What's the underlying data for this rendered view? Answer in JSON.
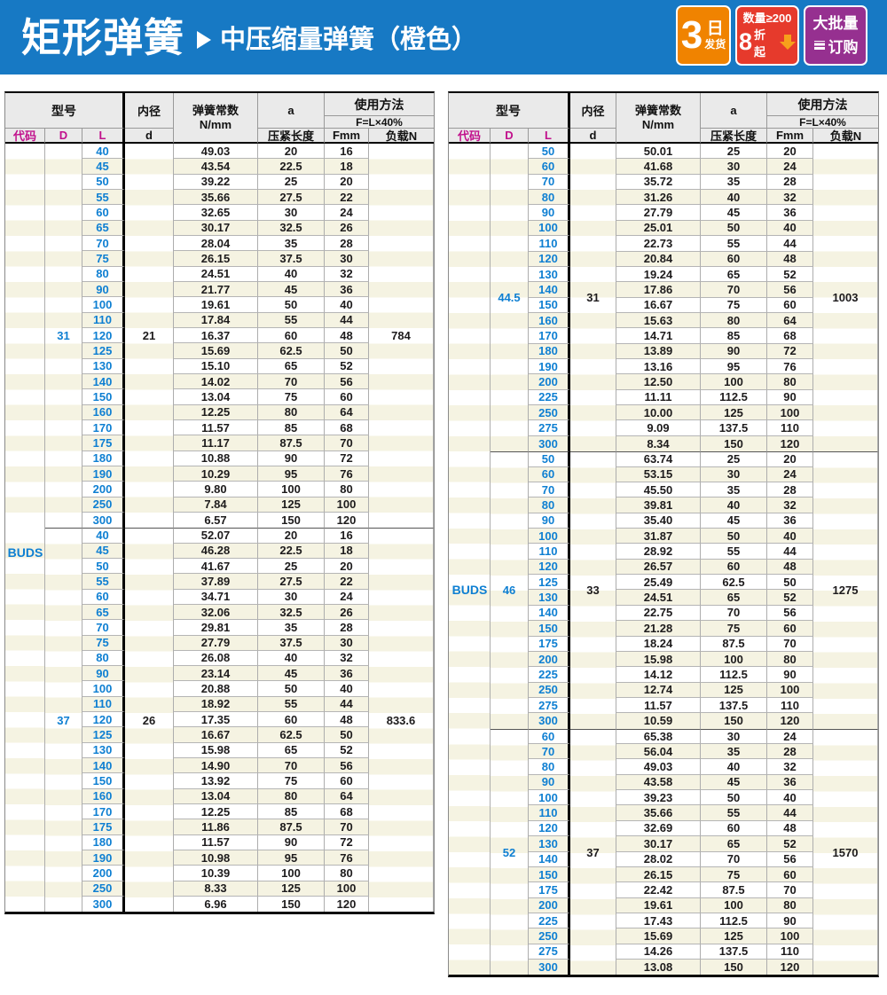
{
  "banner": {
    "title": "矩形弹簧",
    "subtitle": "中压缩量弹簧（橙色）",
    "badges": {
      "shipping": {
        "big": "3",
        "unit": "日",
        "small": "发货"
      },
      "discount": {
        "top": "数量≥200",
        "big": "8",
        "rest": "折起"
      },
      "bulk": {
        "top": "大批量",
        "bottom": "订购"
      }
    }
  },
  "table_header": {
    "model": "型号",
    "code": "代码",
    "D": "D",
    "L": "L",
    "inner_dia": "内径",
    "d": "d",
    "spring_rate_1": "弹簧常数",
    "spring_rate_2": "N/mm",
    "a": "a",
    "compress_len": "压紧长度",
    "usage": "使用方法",
    "formula": "F=L×40%",
    "fmm": "Fmm",
    "load": "负载N"
  },
  "tables": [
    {
      "code": "BUDS",
      "groups": [
        {
          "D": "31",
          "d": "21",
          "load": "784",
          "rows": [
            [
              "40",
              "49.03",
              "20",
              "16"
            ],
            [
              "45",
              "43.54",
              "22.5",
              "18"
            ],
            [
              "50",
              "39.22",
              "25",
              "20"
            ],
            [
              "55",
              "35.66",
              "27.5",
              "22"
            ],
            [
              "60",
              "32.65",
              "30",
              "24"
            ],
            [
              "65",
              "30.17",
              "32.5",
              "26"
            ],
            [
              "70",
              "28.04",
              "35",
              "28"
            ],
            [
              "75",
              "26.15",
              "37.5",
              "30"
            ],
            [
              "80",
              "24.51",
              "40",
              "32"
            ],
            [
              "90",
              "21.77",
              "45",
              "36"
            ],
            [
              "100",
              "19.61",
              "50",
              "40"
            ],
            [
              "110",
              "17.84",
              "55",
              "44"
            ],
            [
              "120",
              "16.37",
              "60",
              "48"
            ],
            [
              "125",
              "15.69",
              "62.5",
              "50"
            ],
            [
              "130",
              "15.10",
              "65",
              "52"
            ],
            [
              "140",
              "14.02",
              "70",
              "56"
            ],
            [
              "150",
              "13.04",
              "75",
              "60"
            ],
            [
              "160",
              "12.25",
              "80",
              "64"
            ],
            [
              "170",
              "11.57",
              "85",
              "68"
            ],
            [
              "175",
              "11.17",
              "87.5",
              "70"
            ],
            [
              "180",
              "10.88",
              "90",
              "72"
            ],
            [
              "190",
              "10.29",
              "95",
              "76"
            ],
            [
              "200",
              "9.80",
              "100",
              "80"
            ],
            [
              "250",
              "7.84",
              "125",
              "100"
            ],
            [
              "300",
              "6.57",
              "150",
              "120"
            ]
          ]
        },
        {
          "D": "37",
          "d": "26",
          "load": "833.6",
          "rows": [
            [
              "40",
              "52.07",
              "20",
              "16"
            ],
            [
              "45",
              "46.28",
              "22.5",
              "18"
            ],
            [
              "50",
              "41.67",
              "25",
              "20"
            ],
            [
              "55",
              "37.89",
              "27.5",
              "22"
            ],
            [
              "60",
              "34.71",
              "30",
              "24"
            ],
            [
              "65",
              "32.06",
              "32.5",
              "26"
            ],
            [
              "70",
              "29.81",
              "35",
              "28"
            ],
            [
              "75",
              "27.79",
              "37.5",
              "30"
            ],
            [
              "80",
              "26.08",
              "40",
              "32"
            ],
            [
              "90",
              "23.14",
              "45",
              "36"
            ],
            [
              "100",
              "20.88",
              "50",
              "40"
            ],
            [
              "110",
              "18.92",
              "55",
              "44"
            ],
            [
              "120",
              "17.35",
              "60",
              "48"
            ],
            [
              "125",
              "16.67",
              "62.5",
              "50"
            ],
            [
              "130",
              "15.98",
              "65",
              "52"
            ],
            [
              "140",
              "14.90",
              "70",
              "56"
            ],
            [
              "150",
              "13.92",
              "75",
              "60"
            ],
            [
              "160",
              "13.04",
              "80",
              "64"
            ],
            [
              "170",
              "12.25",
              "85",
              "68"
            ],
            [
              "175",
              "11.86",
              "87.5",
              "70"
            ],
            [
              "180",
              "11.57",
              "90",
              "72"
            ],
            [
              "190",
              "10.98",
              "95",
              "76"
            ],
            [
              "200",
              "10.39",
              "100",
              "80"
            ],
            [
              "250",
              "8.33",
              "125",
              "100"
            ],
            [
              "300",
              "6.96",
              "150",
              "120"
            ]
          ]
        }
      ]
    },
    {
      "code": "BUDS",
      "groups": [
        {
          "D": "44.5",
          "d": "31",
          "load": "1003",
          "rows": [
            [
              "50",
              "50.01",
              "25",
              "20"
            ],
            [
              "60",
              "41.68",
              "30",
              "24"
            ],
            [
              "70",
              "35.72",
              "35",
              "28"
            ],
            [
              "80",
              "31.26",
              "40",
              "32"
            ],
            [
              "90",
              "27.79",
              "45",
              "36"
            ],
            [
              "100",
              "25.01",
              "50",
              "40"
            ],
            [
              "110",
              "22.73",
              "55",
              "44"
            ],
            [
              "120",
              "20.84",
              "60",
              "48"
            ],
            [
              "130",
              "19.24",
              "65",
              "52"
            ],
            [
              "140",
              "17.86",
              "70",
              "56"
            ],
            [
              "150",
              "16.67",
              "75",
              "60"
            ],
            [
              "160",
              "15.63",
              "80",
              "64"
            ],
            [
              "170",
              "14.71",
              "85",
              "68"
            ],
            [
              "180",
              "13.89",
              "90",
              "72"
            ],
            [
              "190",
              "13.16",
              "95",
              "76"
            ],
            [
              "200",
              "12.50",
              "100",
              "80"
            ],
            [
              "225",
              "11.11",
              "112.5",
              "90"
            ],
            [
              "250",
              "10.00",
              "125",
              "100"
            ],
            [
              "275",
              "9.09",
              "137.5",
              "110"
            ],
            [
              "300",
              "8.34",
              "150",
              "120"
            ]
          ]
        },
        {
          "D": "46",
          "d": "33",
          "load": "1275",
          "rows": [
            [
              "50",
              "63.74",
              "25",
              "20"
            ],
            [
              "60",
              "53.15",
              "30",
              "24"
            ],
            [
              "70",
              "45.50",
              "35",
              "28"
            ],
            [
              "80",
              "39.81",
              "40",
              "32"
            ],
            [
              "90",
              "35.40",
              "45",
              "36"
            ],
            [
              "100",
              "31.87",
              "50",
              "40"
            ],
            [
              "110",
              "28.92",
              "55",
              "44"
            ],
            [
              "120",
              "26.57",
              "60",
              "48"
            ],
            [
              "125",
              "25.49",
              "62.5",
              "50"
            ],
            [
              "130",
              "24.51",
              "65",
              "52"
            ],
            [
              "140",
              "22.75",
              "70",
              "56"
            ],
            [
              "150",
              "21.28",
              "75",
              "60"
            ],
            [
              "175",
              "18.24",
              "87.5",
              "70"
            ],
            [
              "200",
              "15.98",
              "100",
              "80"
            ],
            [
              "225",
              "14.12",
              "112.5",
              "90"
            ],
            [
              "250",
              "12.74",
              "125",
              "100"
            ],
            [
              "275",
              "11.57",
              "137.5",
              "110"
            ],
            [
              "300",
              "10.59",
              "150",
              "120"
            ]
          ]
        },
        {
          "D": "52",
          "d": "37",
          "load": "1570",
          "rows": [
            [
              "60",
              "65.38",
              "30",
              "24"
            ],
            [
              "70",
              "56.04",
              "35",
              "28"
            ],
            [
              "80",
              "49.03",
              "40",
              "32"
            ],
            [
              "90",
              "43.58",
              "45",
              "36"
            ],
            [
              "100",
              "39.23",
              "50",
              "40"
            ],
            [
              "110",
              "35.66",
              "55",
              "44"
            ],
            [
              "120",
              "32.69",
              "60",
              "48"
            ],
            [
              "130",
              "30.17",
              "65",
              "52"
            ],
            [
              "140",
              "28.02",
              "70",
              "56"
            ],
            [
              "150",
              "26.15",
              "75",
              "60"
            ],
            [
              "175",
              "22.42",
              "87.5",
              "70"
            ],
            [
              "200",
              "19.61",
              "100",
              "80"
            ],
            [
              "225",
              "17.43",
              "112.5",
              "90"
            ],
            [
              "250",
              "15.69",
              "125",
              "100"
            ],
            [
              "275",
              "14.26",
              "137.5",
              "110"
            ],
            [
              "300",
              "13.08",
              "150",
              "120"
            ]
          ]
        }
      ]
    }
  ],
  "colors": {
    "banner_blue": "#1779c4",
    "badge_orange": "#f08300",
    "badge_red": "#e63a2c",
    "badge_purple": "#963090",
    "accent_blue": "#0e7fd2",
    "accent_magenta": "#c1108c",
    "stripe_cream": "#f5f3e2"
  }
}
